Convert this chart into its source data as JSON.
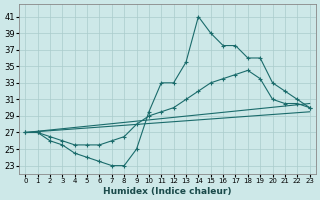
{
  "xlabel": "Humidex (Indice chaleur)",
  "background_color": "#cde8e8",
  "grid_color": "#aacccc",
  "line_color": "#1a6b6b",
  "xlim": [
    -0.5,
    23.5
  ],
  "ylim": [
    22.0,
    42.5
  ],
  "yticks": [
    23,
    25,
    27,
    29,
    31,
    33,
    35,
    37,
    39,
    41
  ],
  "xticks": [
    0,
    1,
    2,
    3,
    4,
    5,
    6,
    7,
    8,
    9,
    10,
    11,
    12,
    13,
    14,
    15,
    16,
    17,
    18,
    19,
    20,
    21,
    22,
    23
  ],
  "series": [
    {
      "x": [
        0,
        1,
        2,
        3,
        4,
        5,
        6,
        7,
        8,
        9,
        10,
        11,
        12,
        13,
        14,
        15,
        16,
        17,
        18,
        19,
        20,
        21,
        22,
        23
      ],
      "y": [
        27,
        27,
        26,
        25.5,
        24.5,
        24,
        23.5,
        23,
        23,
        25,
        29.5,
        33,
        33,
        35.5,
        41,
        39,
        37.5,
        37.5,
        36,
        36,
        33,
        32,
        31,
        30
      ],
      "marker": "+"
    },
    {
      "x": [
        0,
        23
      ],
      "y": [
        27,
        30.5
      ],
      "marker": null
    },
    {
      "x": [
        0,
        23
      ],
      "y": [
        27,
        29.5
      ],
      "marker": null
    },
    {
      "x": [
        0,
        1,
        2,
        3,
        4,
        5,
        6,
        7,
        8,
        9,
        10,
        11,
        12,
        13,
        14,
        15,
        16,
        17,
        18,
        19,
        20,
        21,
        22,
        23
      ],
      "y": [
        27,
        27,
        26.5,
        26,
        25.5,
        25.5,
        25.5,
        26,
        26.5,
        28,
        29,
        29.5,
        30,
        31,
        32,
        33,
        33.5,
        34,
        34.5,
        33.5,
        31,
        30.5,
        30.5,
        30
      ],
      "marker": "+"
    }
  ]
}
